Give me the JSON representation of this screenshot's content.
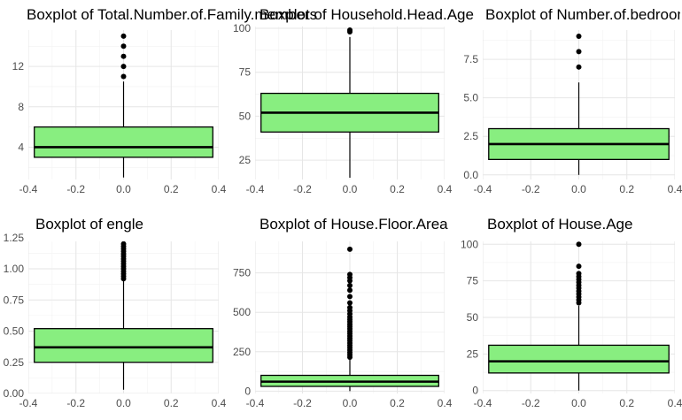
{
  "colors": {
    "box_fill": "#88EE80",
    "box_stroke": "#000000",
    "grid_major": "#E6E6E6",
    "grid_minor": "#F2F2F2",
    "outlier": "#000000"
  },
  "chart_data": [
    {
      "type": "boxplot",
      "title": "Boxplot of Total.Number.of.Family.members",
      "xlim": [
        -0.4,
        0.4
      ],
      "ylim": [
        0.8,
        15.6
      ],
      "x_ticks": [
        -0.4,
        -0.2,
        0.0,
        0.2,
        0.4
      ],
      "x_tick_labels": [
        "-0.4",
        "-0.2",
        "0.0",
        "0.2",
        "0.4"
      ],
      "y_ticks": [
        4,
        8,
        12
      ],
      "y_tick_labels": [
        "4",
        "8",
        "12"
      ],
      "box": {
        "lower_whisker": 1,
        "q1": 3,
        "median": 4,
        "q3": 6,
        "upper_whisker": 10.5,
        "x_left": -0.375,
        "x_right": 0.375,
        "x_center": 0.0
      },
      "outliers": [
        11,
        12,
        13,
        14,
        15
      ]
    },
    {
      "type": "boxplot",
      "title": "Boxplot of Household.Head.Age",
      "xlim": [
        -0.4,
        0.4
      ],
      "ylim": [
        14,
        101
      ],
      "x_ticks": [
        -0.4,
        -0.2,
        0.0,
        0.2,
        0.4
      ],
      "x_tick_labels": [
        "-0.4",
        "-0.2",
        "0.0",
        "0.2",
        "0.4"
      ],
      "y_ticks": [
        25,
        50,
        75,
        100
      ],
      "y_tick_labels": [
        "25",
        "50",
        "75",
        "100"
      ],
      "box": {
        "lower_whisker": 15,
        "q1": 41,
        "median": 52,
        "q3": 63,
        "upper_whisker": 95,
        "x_left": -0.375,
        "x_right": 0.375,
        "x_center": 0.0
      },
      "outliers": [
        98,
        99
      ]
    },
    {
      "type": "boxplot",
      "title": "Boxplot of Number.of.bedrooms",
      "xlim": [
        -0.4,
        0.4
      ],
      "ylim": [
        -0.3,
        9.4
      ],
      "x_ticks": [
        -0.4,
        -0.2,
        0.0,
        0.2,
        0.4
      ],
      "x_tick_labels": [
        "-0.4",
        "-0.2",
        "0.0",
        "0.2",
        "0.4"
      ],
      "y_ticks": [
        0,
        2.5,
        5,
        7.5
      ],
      "y_tick_labels": [
        "0.0",
        "2.5",
        "5.0",
        "7.5"
      ],
      "box": {
        "lower_whisker": 0,
        "q1": 1,
        "median": 2,
        "q3": 3,
        "upper_whisker": 6,
        "x_left": -0.375,
        "x_right": 0.375,
        "x_center": 0.0
      },
      "outliers": [
        7,
        8,
        9
      ]
    },
    {
      "type": "boxplot",
      "title": "Boxplot of engle",
      "xlim": [
        -0.4,
        0.4
      ],
      "ylim": [
        0,
        1.22
      ],
      "x_ticks": [
        -0.4,
        -0.2,
        0.0,
        0.2,
        0.4
      ],
      "x_tick_labels": [
        "-0.4",
        "-0.2",
        "0.0",
        "0.2",
        "0.4"
      ],
      "y_ticks": [
        0,
        0.25,
        0.5,
        0.75,
        1.0,
        1.25
      ],
      "y_tick_labels": [
        "0.00",
        "0.25",
        "0.50",
        "0.75",
        "1.00",
        "1.25"
      ],
      "box": {
        "lower_whisker": 0.03,
        "q1": 0.25,
        "median": 0.37,
        "q3": 0.52,
        "upper_whisker": 0.91,
        "x_left": -0.375,
        "x_right": 0.375,
        "x_center": 0.0
      },
      "outliers": [
        0.92,
        0.94,
        0.96,
        0.98,
        1.0,
        1.02,
        1.04,
        1.06,
        1.08,
        1.1,
        1.12,
        1.14,
        1.16,
        1.18,
        1.2
      ]
    },
    {
      "type": "boxplot",
      "title": "Boxplot of House.Floor.Area",
      "xlim": [
        -0.4,
        0.4
      ],
      "ylim": [
        -15,
        950
      ],
      "x_ticks": [
        -0.4,
        -0.2,
        0.0,
        0.2,
        0.4
      ],
      "x_tick_labels": [
        "-0.4",
        "-0.2",
        "0.0",
        "0.2",
        "0.4"
      ],
      "y_ticks": [
        0,
        250,
        500,
        750
      ],
      "y_tick_labels": [
        "0",
        "250",
        "500",
        "750"
      ],
      "box": {
        "lower_whisker": 0,
        "q1": 30,
        "median": 60,
        "q3": 100,
        "upper_whisker": 205,
        "x_left": -0.375,
        "x_right": 0.375,
        "x_center": 0.0
      },
      "outliers": [
        215,
        230,
        245,
        260,
        275,
        290,
        305,
        320,
        335,
        350,
        365,
        380,
        395,
        410,
        425,
        440,
        455,
        470,
        490,
        510,
        530,
        560,
        600,
        640,
        670,
        700,
        720,
        740,
        900
      ]
    },
    {
      "type": "boxplot",
      "title": "Boxplot of House.Age",
      "xlim": [
        -0.4,
        0.4
      ],
      "ylim": [
        -2,
        102
      ],
      "x_ticks": [
        -0.4,
        -0.2,
        0.0,
        0.2,
        0.4
      ],
      "x_tick_labels": [
        "-0.4",
        "-0.2",
        "0.0",
        "0.2",
        "0.4"
      ],
      "y_ticks": [
        0,
        25,
        50,
        75,
        100
      ],
      "y_tick_labels": [
        "0",
        "25",
        "50",
        "75",
        "100"
      ],
      "box": {
        "lower_whisker": 0,
        "q1": 12,
        "median": 20,
        "q3": 31,
        "upper_whisker": 58,
        "x_left": -0.375,
        "x_right": 0.375,
        "x_center": 0.0
      },
      "outliers": [
        60,
        62,
        64,
        66,
        68,
        70,
        72,
        74,
        76,
        78,
        80,
        85,
        100
      ]
    }
  ]
}
